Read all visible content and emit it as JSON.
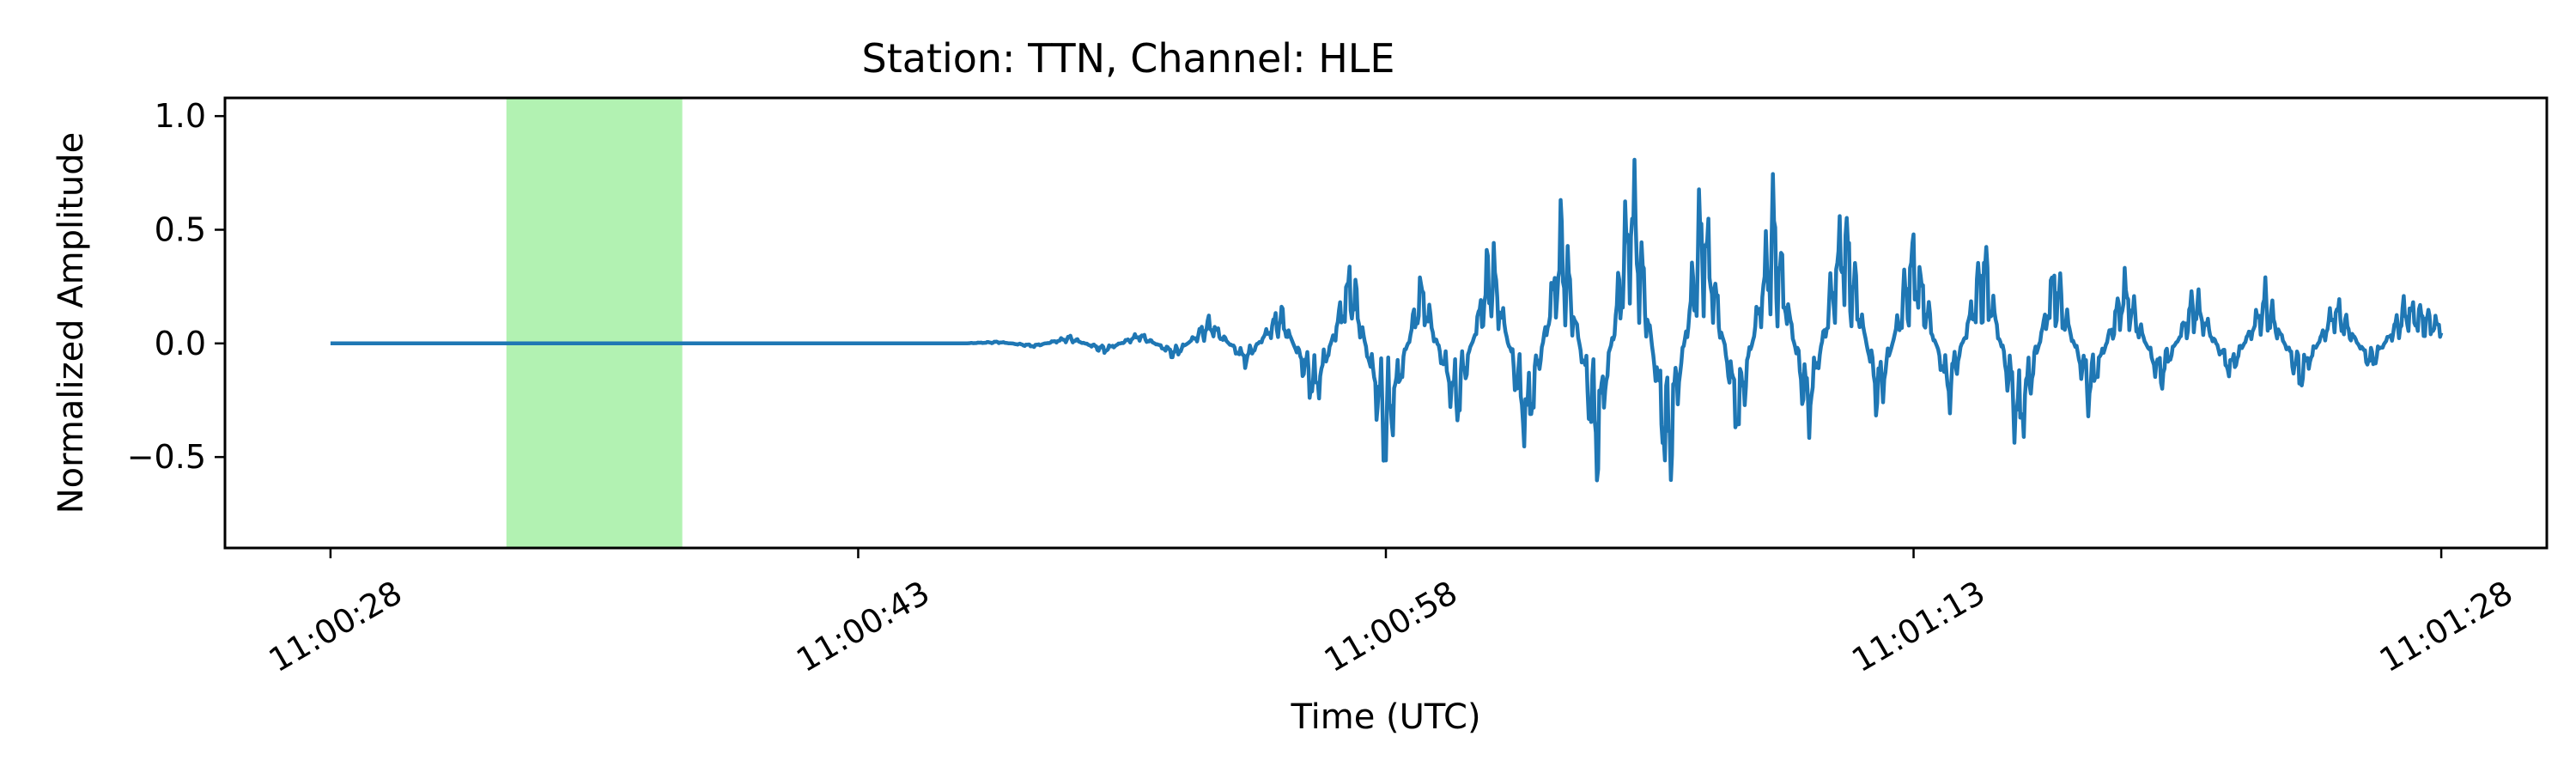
{
  "chart_data": {
    "type": "line",
    "title": "Station: TTN, Channel: HLE",
    "xlabel": "Time (UTC)",
    "ylabel": "Normalized Amplitude",
    "xlim": [
      "11:00:25",
      "11:01:31"
    ],
    "ylim": [
      -0.9,
      1.08
    ],
    "x_ticks": [
      "11:00:28",
      "11:00:43",
      "11:00:58",
      "11:01:13",
      "11:01:28"
    ],
    "y_ticks": [
      "1.0",
      "0.5",
      "0.0",
      "−0.5"
    ],
    "y_tick_values": [
      1.0,
      0.5,
      0.0,
      -0.5
    ],
    "grid": false,
    "line_color": "#1f77b4",
    "highlight": {
      "x_start": "11:00:33",
      "x_end": "11:00:38",
      "color": "#b2f2b2"
    },
    "series": [
      {
        "x_start": "11:00:28",
        "x_end": "11:01:28",
        "values_note": "",
        "points": [
          [
            "11:00:28",
            0.0
          ],
          [
            "11:00:46",
            0.0
          ],
          [
            "11:00:47",
            0.01
          ],
          [
            "11:00:48",
            -0.02
          ],
          [
            "11:00:49",
            0.04
          ],
          [
            "11:00:50",
            -0.05
          ],
          [
            "11:00:51",
            0.06
          ],
          [
            "11:00:52",
            -0.08
          ],
          [
            "11:00:53",
            0.14
          ],
          [
            "11:00:54",
            -0.12
          ],
          [
            "11:00:55",
            0.2
          ],
          [
            "11:00:56",
            -0.35
          ],
          [
            "11:00:57",
            0.45
          ],
          [
            "11:00:58",
            -0.65
          ],
          [
            "11:00:59",
            0.38
          ],
          [
            "11:01:00",
            -0.45
          ],
          [
            "11:01:01",
            0.56
          ],
          [
            "11:01:02",
            -0.6
          ],
          [
            "11:01:03",
            0.7
          ],
          [
            "11:01:04",
            -0.7
          ],
          [
            "11:01:05",
            1.0
          ],
          [
            "11:01:06",
            -0.8
          ],
          [
            "11:01:07",
            0.86
          ],
          [
            "11:01:08",
            -0.55
          ],
          [
            "11:01:09",
            0.8
          ],
          [
            "11:01:10",
            -0.5
          ],
          [
            "11:01:11",
            0.78
          ],
          [
            "11:01:12",
            -0.4
          ],
          [
            "11:01:13",
            0.6
          ],
          [
            "11:01:14",
            -0.35
          ],
          [
            "11:01:15",
            0.55
          ],
          [
            "11:01:16",
            -0.6
          ],
          [
            "11:01:17",
            0.45
          ],
          [
            "11:01:18",
            -0.35
          ],
          [
            "11:01:19",
            0.38
          ],
          [
            "11:01:20",
            -0.25
          ],
          [
            "11:01:21",
            0.3
          ],
          [
            "11:01:22",
            -0.2
          ],
          [
            "11:01:23",
            0.3
          ],
          [
            "11:01:24",
            -0.25
          ],
          [
            "11:01:25",
            0.25
          ],
          [
            "11:01:26",
            -0.15
          ],
          [
            "11:01:27",
            0.24
          ],
          [
            "11:01:28",
            0.12
          ]
        ]
      }
    ]
  }
}
